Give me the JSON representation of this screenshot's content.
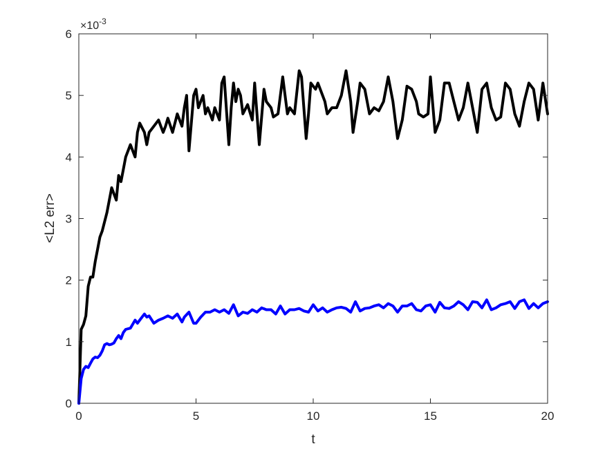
{
  "chart_data": {
    "type": "line",
    "title": "",
    "xlabel": "t",
    "ylabel": "<L2 err>",
    "xlim": [
      0,
      20
    ],
    "ylim": [
      0,
      0.006
    ],
    "xticks": [
      0,
      5,
      10,
      15,
      20
    ],
    "yticks": [
      0,
      0.001,
      0.002,
      0.003,
      0.004,
      0.005,
      0.006
    ],
    "x_tick_labels": [
      "0",
      "5",
      "10",
      "15",
      "20"
    ],
    "y_tick_labels": [
      "0",
      "1",
      "2",
      "3",
      "4",
      "5",
      "6"
    ],
    "y_exponent_base": "×10",
    "y_exponent_power": "-3",
    "grid": false,
    "series": [
      {
        "color": "#000000",
        "x": [
          0,
          0.1,
          0.2,
          0.3,
          0.4,
          0.5,
          0.6,
          0.7,
          0.8,
          0.9,
          1.0,
          1.2,
          1.4,
          1.6,
          1.7,
          1.8,
          1.9,
          2.0,
          2.2,
          2.4,
          2.5,
          2.6,
          2.8,
          2.9,
          3.0,
          3.2,
          3.4,
          3.5,
          3.6,
          3.7,
          3.8,
          4.0,
          4.2,
          4.4,
          4.5,
          4.6,
          4.7,
          4.9,
          5.0,
          5.1,
          5.3,
          5.4,
          5.5,
          5.7,
          5.8,
          6.0,
          6.1,
          6.2,
          6.4,
          6.5,
          6.6,
          6.7,
          6.8,
          6.9,
          7.0,
          7.2,
          7.4,
          7.5,
          7.7,
          7.9,
          8.0,
          8.2,
          8.3,
          8.5,
          8.7,
          8.9,
          9.0,
          9.2,
          9.4,
          9.5,
          9.7,
          9.8,
          9.9,
          10.1,
          10.2,
          10.5,
          10.6,
          10.8,
          11.0,
          11.2,
          11.4,
          11.6,
          11.7,
          11.9,
          12.0,
          12.2,
          12.4,
          12.6,
          12.8,
          13.0,
          13.2,
          13.4,
          13.6,
          13.8,
          14.0,
          14.2,
          14.4,
          14.5,
          14.7,
          14.9,
          15.0,
          15.2,
          15.4,
          15.6,
          15.8,
          16.0,
          16.2,
          16.4,
          16.6,
          16.8,
          17.0,
          17.2,
          17.4,
          17.6,
          17.8,
          18.0,
          18.2,
          18.4,
          18.6,
          18.8,
          19.0,
          19.2,
          19.4,
          19.6,
          19.8,
          20.0
        ],
        "y": [
          0,
          0.0012,
          0.00128,
          0.00142,
          0.0019,
          0.00205,
          0.00205,
          0.0023,
          0.0025,
          0.0027,
          0.0028,
          0.0031,
          0.0035,
          0.0033,
          0.0037,
          0.0036,
          0.0038,
          0.004,
          0.0042,
          0.004,
          0.0044,
          0.00455,
          0.0044,
          0.0042,
          0.0044,
          0.0045,
          0.0046,
          0.0045,
          0.0044,
          0.0045,
          0.00463,
          0.0044,
          0.0047,
          0.0045,
          0.0048,
          0.005,
          0.0041,
          0.005,
          0.0051,
          0.0048,
          0.005,
          0.0047,
          0.0048,
          0.0046,
          0.0048,
          0.0046,
          0.0052,
          0.0053,
          0.0042,
          0.0048,
          0.0052,
          0.0049,
          0.0051,
          0.005,
          0.0047,
          0.00485,
          0.0046,
          0.0052,
          0.0042,
          0.0051,
          0.0049,
          0.0048,
          0.00465,
          0.0047,
          0.0053,
          0.0047,
          0.0048,
          0.0047,
          0.0054,
          0.0053,
          0.0043,
          0.0047,
          0.0052,
          0.0051,
          0.0052,
          0.0049,
          0.0047,
          0.0048,
          0.0048,
          0.005,
          0.0054,
          0.0049,
          0.0044,
          0.0049,
          0.0052,
          0.0051,
          0.0047,
          0.0048,
          0.00475,
          0.0049,
          0.0053,
          0.0049,
          0.0043,
          0.0046,
          0.00515,
          0.0051,
          0.0049,
          0.0047,
          0.00465,
          0.0047,
          0.0053,
          0.0044,
          0.0046,
          0.0052,
          0.0052,
          0.0049,
          0.0046,
          0.0048,
          0.0052,
          0.0048,
          0.0044,
          0.0051,
          0.0052,
          0.0048,
          0.0046,
          0.00465,
          0.0052,
          0.0051,
          0.0047,
          0.0045,
          0.0049,
          0.0052,
          0.0051,
          0.0046,
          0.0052,
          0.0047
        ],
        "stroke_width": 4
      },
      {
        "color": "#0000ff",
        "x": [
          0,
          0.1,
          0.2,
          0.3,
          0.4,
          0.5,
          0.6,
          0.7,
          0.8,
          0.9,
          1.0,
          1.1,
          1.2,
          1.3,
          1.4,
          1.5,
          1.6,
          1.7,
          1.8,
          1.9,
          2.0,
          2.2,
          2.4,
          2.5,
          2.6,
          2.8,
          2.9,
          3.0,
          3.2,
          3.4,
          3.6,
          3.8,
          4.0,
          4.2,
          4.4,
          4.5,
          4.7,
          4.9,
          5.0,
          5.2,
          5.4,
          5.6,
          5.8,
          6.0,
          6.2,
          6.4,
          6.6,
          6.8,
          7.0,
          7.2,
          7.4,
          7.6,
          7.8,
          8.0,
          8.2,
          8.4,
          8.6,
          8.8,
          9.0,
          9.2,
          9.4,
          9.6,
          9.8,
          10.0,
          10.2,
          10.4,
          10.6,
          10.8,
          11.0,
          11.2,
          11.4,
          11.6,
          11.8,
          12.0,
          12.2,
          12.4,
          12.6,
          12.8,
          13.0,
          13.2,
          13.4,
          13.6,
          13.8,
          14.0,
          14.2,
          14.4,
          14.6,
          14.8,
          15.0,
          15.2,
          15.4,
          15.6,
          15.8,
          16.0,
          16.2,
          16.4,
          16.6,
          16.8,
          17.0,
          17.2,
          17.4,
          17.6,
          17.8,
          18.0,
          18.2,
          18.4,
          18.6,
          18.8,
          19.0,
          19.2,
          19.4,
          19.6,
          19.8,
          20.0
        ],
        "y": [
          0,
          0.0004,
          0.00055,
          0.0006,
          0.00058,
          0.00065,
          0.00072,
          0.00075,
          0.00074,
          0.00078,
          0.00085,
          0.00095,
          0.00097,
          0.00095,
          0.00096,
          0.00098,
          0.00105,
          0.0011,
          0.00105,
          0.00115,
          0.0012,
          0.00122,
          0.00135,
          0.0013,
          0.00135,
          0.00145,
          0.0014,
          0.00142,
          0.0013,
          0.00135,
          0.00138,
          0.00142,
          0.00138,
          0.00145,
          0.00132,
          0.0014,
          0.00148,
          0.0013,
          0.0013,
          0.0014,
          0.00148,
          0.00148,
          0.00152,
          0.00148,
          0.00152,
          0.00146,
          0.0016,
          0.00142,
          0.00148,
          0.00146,
          0.00152,
          0.00148,
          0.00155,
          0.00152,
          0.00152,
          0.00145,
          0.00158,
          0.00145,
          0.00152,
          0.00152,
          0.00154,
          0.0015,
          0.00148,
          0.0016,
          0.0015,
          0.00155,
          0.00148,
          0.00152,
          0.00155,
          0.00156,
          0.00154,
          0.00148,
          0.00165,
          0.0015,
          0.00154,
          0.00155,
          0.00158,
          0.0016,
          0.00155,
          0.00162,
          0.00158,
          0.00148,
          0.00158,
          0.00158,
          0.00162,
          0.00152,
          0.0015,
          0.00158,
          0.0016,
          0.00148,
          0.00164,
          0.00155,
          0.00154,
          0.00158,
          0.00165,
          0.0016,
          0.00152,
          0.00165,
          0.00164,
          0.00155,
          0.00168,
          0.00152,
          0.00155,
          0.0016,
          0.00162,
          0.00165,
          0.00154,
          0.00165,
          0.00168,
          0.00154,
          0.00162,
          0.00155,
          0.00162,
          0.00165
        ],
        "stroke_width": 4
      }
    ]
  }
}
